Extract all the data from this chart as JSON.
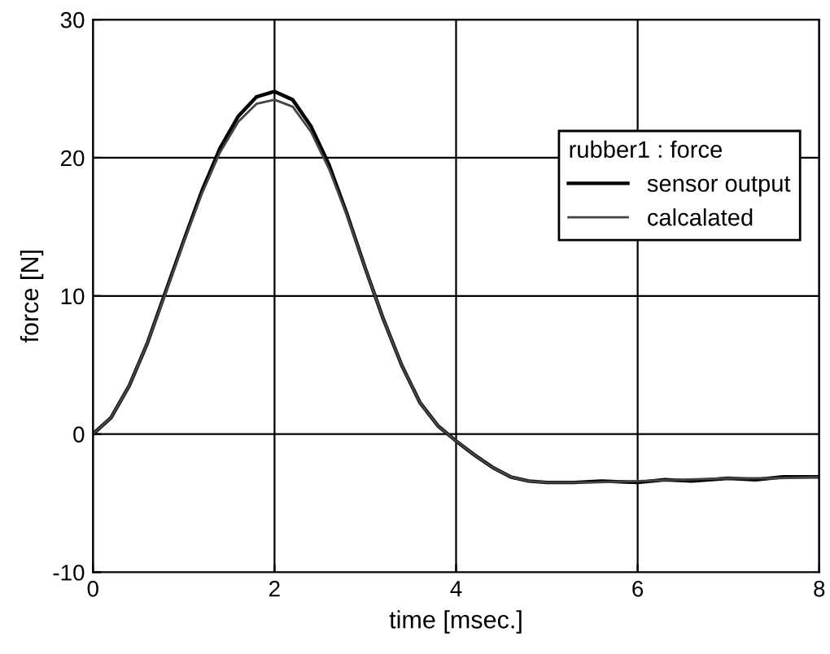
{
  "chart_data": {
    "type": "line",
    "xlabel": "time [msec.]",
    "ylabel": "force [N]",
    "legend_title": "rubber1 : force",
    "xlim": [
      0,
      8
    ],
    "ylim": [
      -10,
      30
    ],
    "xticks": [
      0,
      2,
      4,
      6,
      8
    ],
    "yticks": [
      -10,
      0,
      10,
      20,
      30
    ],
    "grid": true,
    "legend": "top right",
    "line_style": "solid",
    "marker": "none",
    "series": [
      {
        "name": "sensor output",
        "color": "#000000",
        "x": [
          0,
          0.2,
          0.4,
          0.6,
          0.8,
          1.0,
          1.2,
          1.4,
          1.6,
          1.8,
          2.0,
          2.2,
          2.4,
          2.6,
          2.8,
          3.0,
          3.2,
          3.4,
          3.6,
          3.8,
          4.0,
          4.2,
          4.4,
          4.6,
          4.8,
          5.0,
          5.3,
          5.6,
          6.0,
          6.3,
          6.6,
          7.0,
          7.3,
          7.6,
          8.0
        ],
        "values": [
          0,
          1.2,
          3.5,
          6.6,
          10.3,
          14.0,
          17.6,
          20.7,
          23.0,
          24.4,
          24.8,
          24.2,
          22.3,
          19.5,
          15.9,
          12.0,
          8.3,
          5.0,
          2.3,
          0.6,
          -0.5,
          -1.5,
          -2.4,
          -3.1,
          -3.4,
          -3.5,
          -3.5,
          -3.4,
          -3.5,
          -3.3,
          -3.4,
          -3.2,
          -3.3,
          -3.1,
          -3.1
        ]
      },
      {
        "name": "calcalated",
        "color": "#444444",
        "x": [
          0,
          0.2,
          0.4,
          0.6,
          0.8,
          1.0,
          1.2,
          1.4,
          1.6,
          1.8,
          2.0,
          2.2,
          2.4,
          2.6,
          2.8,
          3.0,
          3.2,
          3.4,
          3.6,
          3.8,
          4.0,
          4.2,
          4.4,
          4.6,
          4.8,
          5.0,
          5.5,
          6.0,
          6.5,
          7.0,
          7.5,
          8.0
        ],
        "values": [
          0,
          1.2,
          3.5,
          6.6,
          10.2,
          13.9,
          17.4,
          20.4,
          22.6,
          23.9,
          24.2,
          23.7,
          21.9,
          19.2,
          15.8,
          12.0,
          8.3,
          5.0,
          2.3,
          0.6,
          -0.5,
          -1.5,
          -2.4,
          -3.1,
          -3.4,
          -3.5,
          -3.5,
          -3.4,
          -3.3,
          -3.2,
          -3.2,
          -3.1
        ]
      }
    ]
  }
}
